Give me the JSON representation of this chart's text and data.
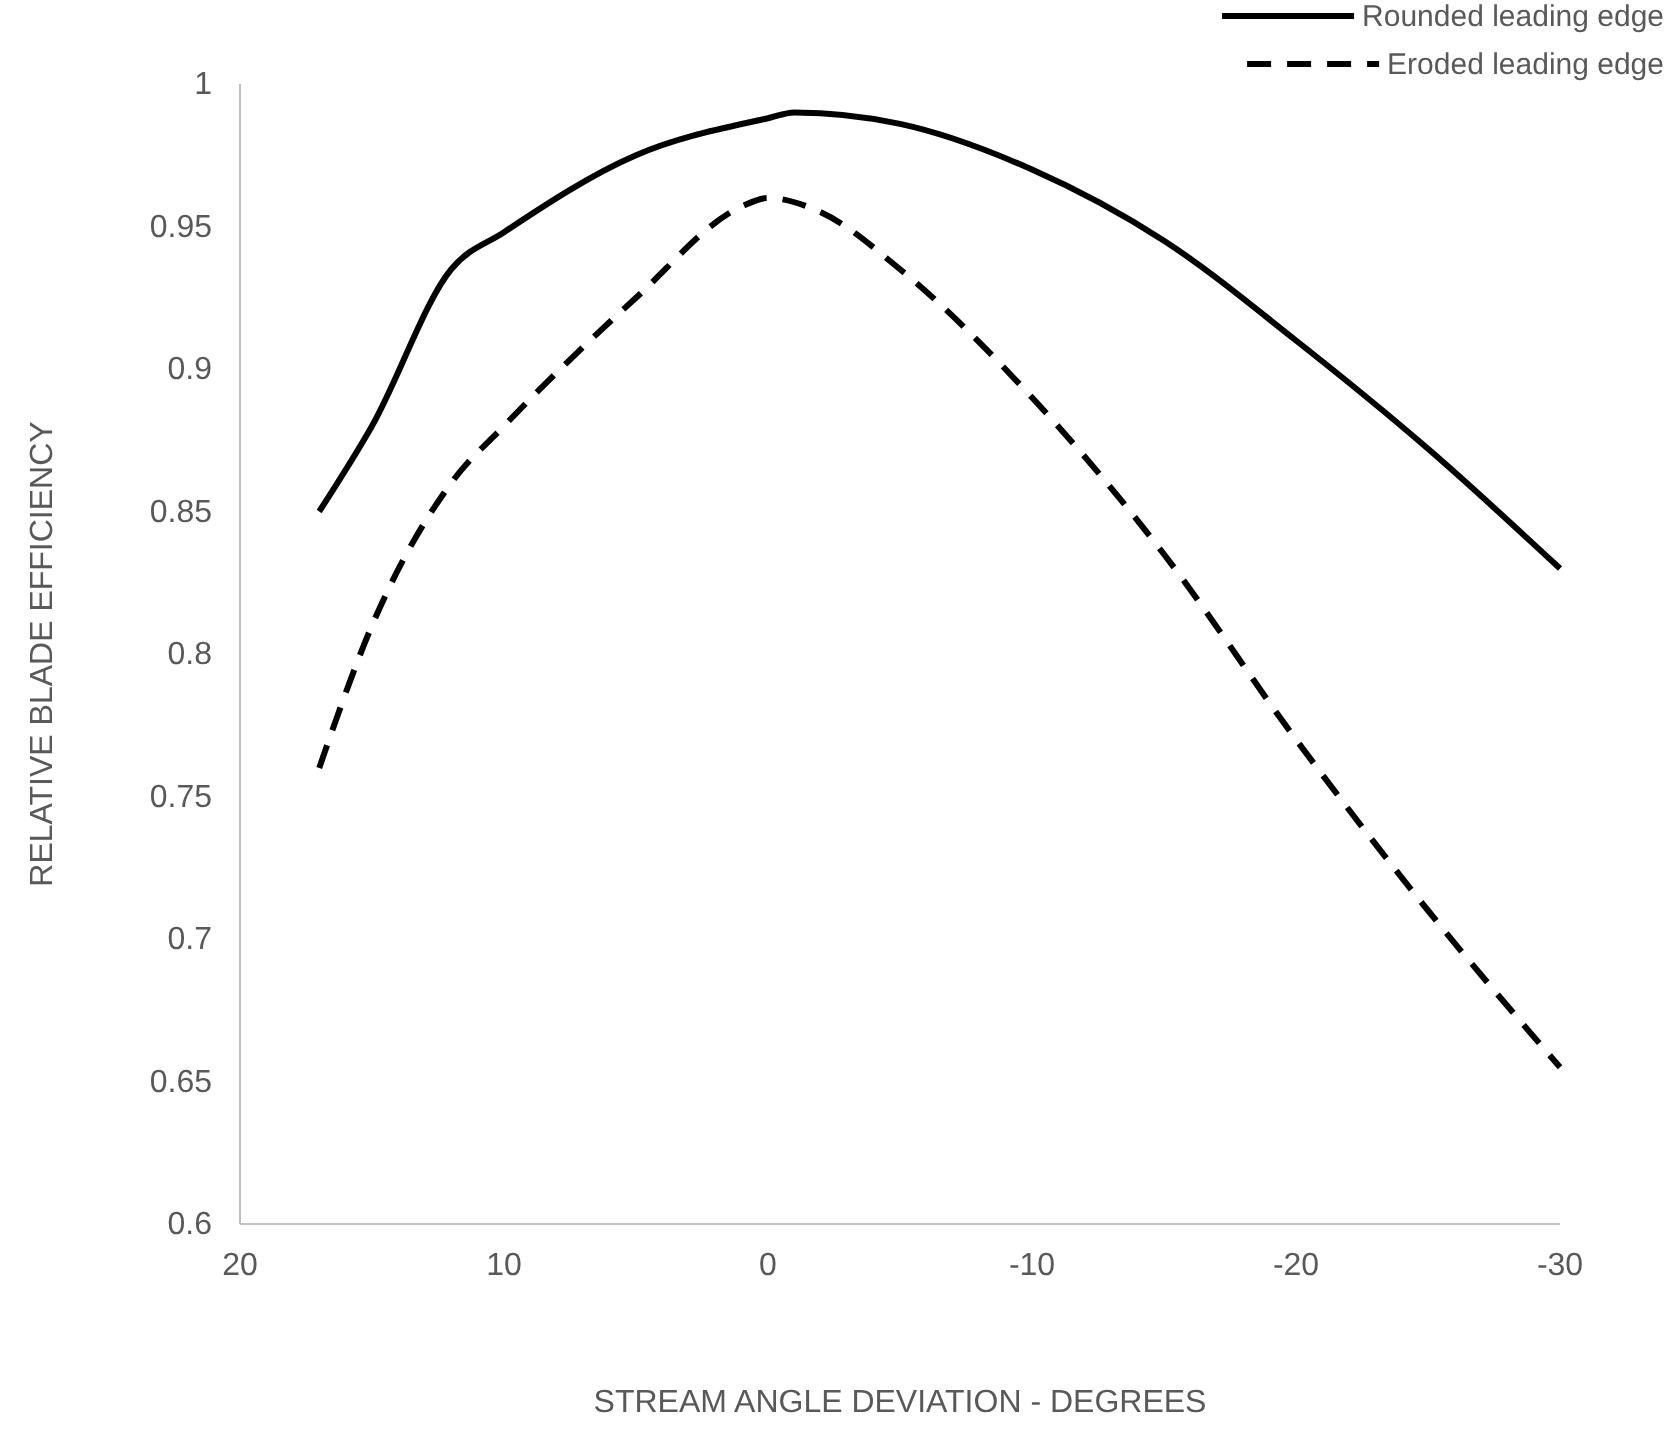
{
  "chart_data": {
    "type": "line",
    "xlabel": "STREAM ANGLE DEVIATION - DEGREES",
    "ylabel": "RELATIVE BLADE EFFICIENCY",
    "xlim": [
      20,
      -30
    ],
    "xticks": [
      20,
      10,
      0,
      -10,
      -20,
      -30
    ],
    "ylim": [
      0.6,
      1
    ],
    "yticks": [
      0.6,
      0.65,
      0.7,
      0.75,
      0.8,
      0.85,
      0.9,
      0.95,
      1
    ],
    "grid": false,
    "legend": "top right",
    "marker": "none",
    "series": [
      {
        "name": "Rounded leading edge",
        "color": "#000000",
        "line_style": "solid",
        "x": [
          17,
          15,
          12,
          10,
          5,
          0,
          -1,
          -5,
          -10,
          -15,
          -20,
          -25,
          -30
        ],
        "values": [
          0.85,
          0.88,
          0.935,
          0.948,
          0.975,
          0.988,
          0.99,
          0.986,
          0.97,
          0.945,
          0.91,
          0.872,
          0.83
        ]
      },
      {
        "name": "Eroded leading edge",
        "color": "#000000",
        "line_style": "dashed",
        "x": [
          17,
          15,
          12,
          10,
          5,
          1,
          0,
          -2,
          -5,
          -10,
          -15,
          -20,
          -25,
          -30
        ],
        "values": [
          0.76,
          0.81,
          0.86,
          0.88,
          0.925,
          0.957,
          0.96,
          0.955,
          0.935,
          0.89,
          0.835,
          0.77,
          0.71,
          0.655
        ]
      }
    ]
  }
}
